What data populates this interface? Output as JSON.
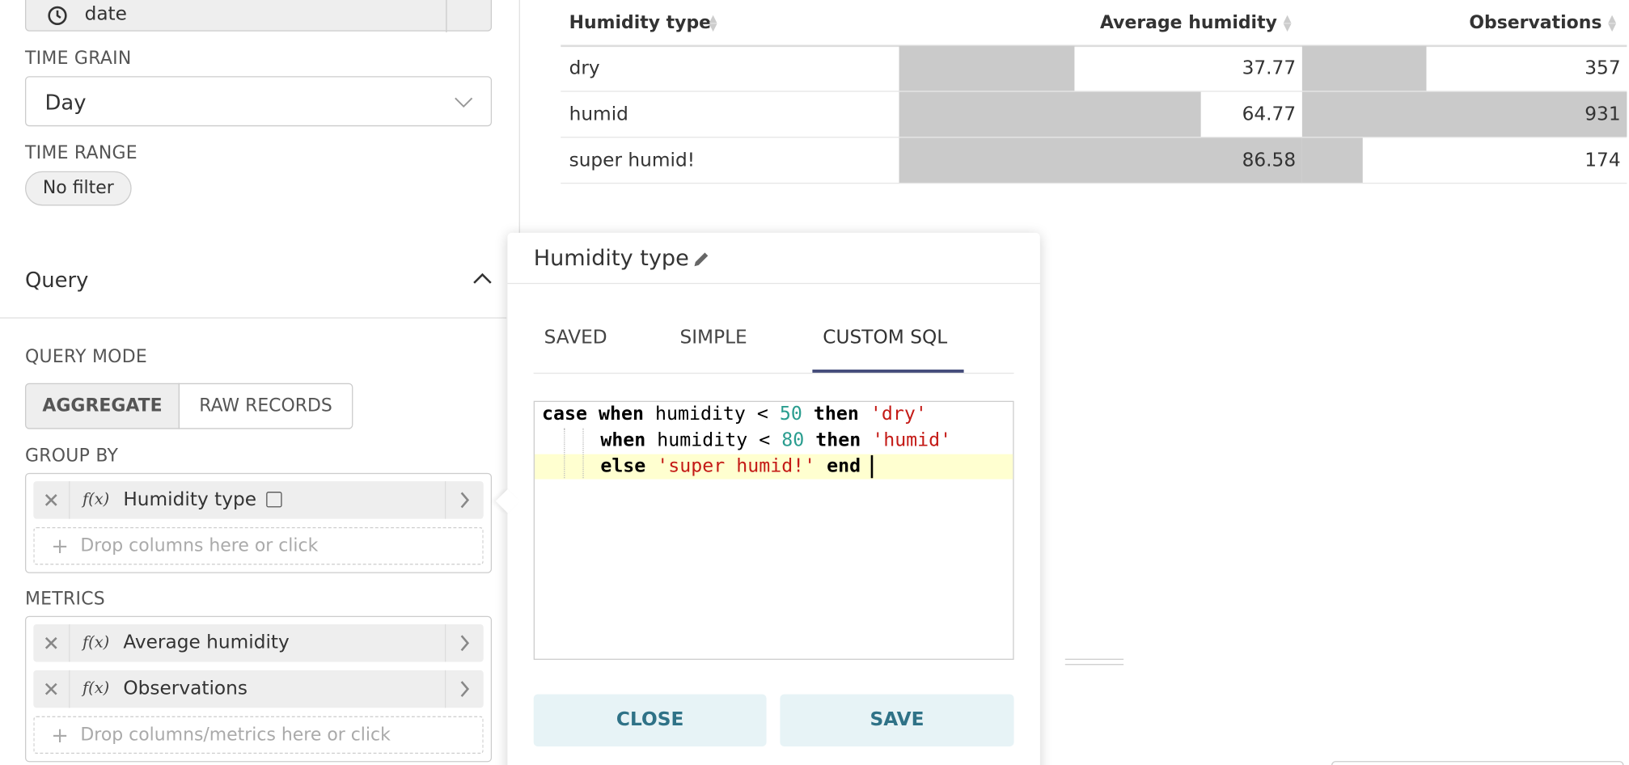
{
  "sidebar": {
    "time_column": "date",
    "time_grain_label": "TIME GRAIN",
    "time_grain": "Day",
    "time_range_label": "TIME RANGE",
    "time_range": "No filter",
    "query_section": "Query",
    "query_mode_label": "QUERY MODE",
    "query_modes": [
      "AGGREGATE",
      "RAW RECORDS"
    ],
    "group_by_label": "GROUP BY",
    "function_icon": "f(x)",
    "group_by": [
      "Humidity type"
    ],
    "group_by_drop": "Drop columns here or click",
    "metrics_label": "METRICS",
    "metrics": [
      "Average humidity",
      "Observations"
    ],
    "metrics_drop": "Drop columns/metrics here or click"
  },
  "table": {
    "columns": [
      "Humidity type",
      "Average humidity",
      "Observations"
    ],
    "rows": [
      [
        "dry",
        37.77,
        357
      ],
      [
        "humid",
        64.77,
        931
      ],
      [
        "super humid!",
        86.58,
        174
      ]
    ]
  },
  "popover": {
    "title": "Humidity type",
    "tabs": [
      "SAVED",
      "SIMPLE",
      "CUSTOM SQL"
    ],
    "code": [
      "case when humidity < 50 then 'dry'",
      "when humidity < 80 then 'humid'",
      "else 'super humid!' end"
    ],
    "buttons": [
      "CLOSE",
      "SAVE"
    ]
  }
}
